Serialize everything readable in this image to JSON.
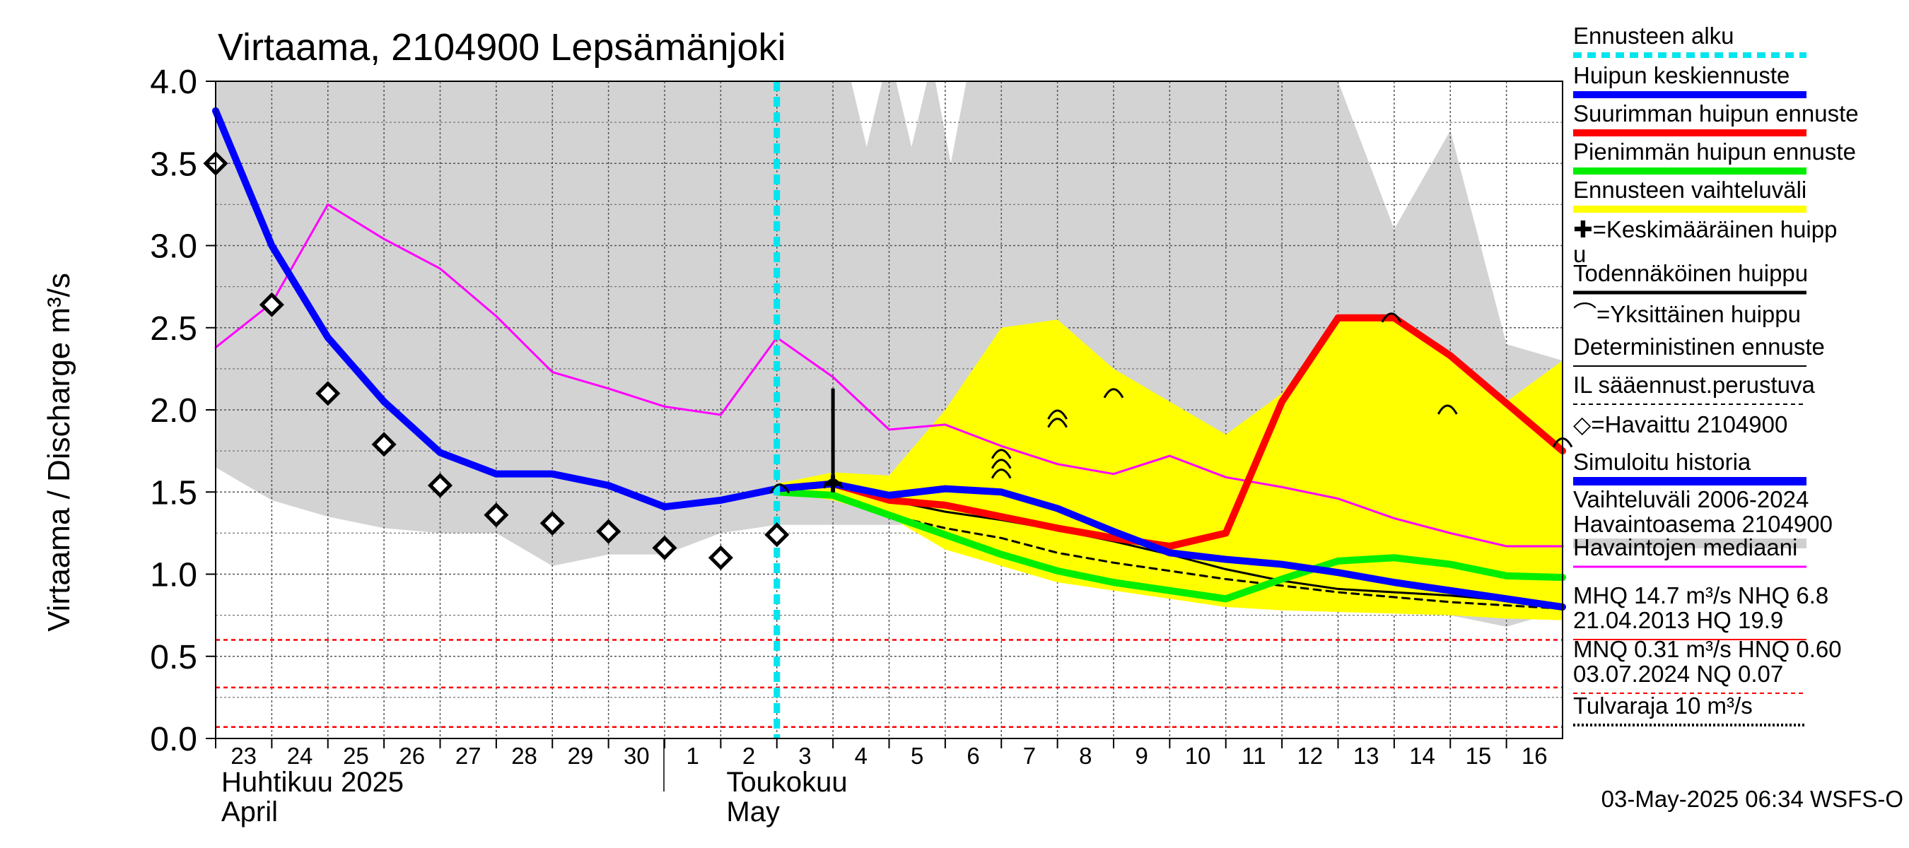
{
  "chart_data": {
    "type": "line",
    "title": "Virtaama, 2104900 Lepsämänjoki",
    "ylabel": "Virtaama / Discharge    m³/s",
    "ylim": [
      0,
      4
    ],
    "yticks": [
      "0.0",
      "0.5",
      "1.0",
      "1.5",
      "2.0",
      "2.5",
      "3.0",
      "3.5",
      "4.0"
    ],
    "xlim": [
      0,
      24
    ],
    "days": [
      "23",
      "24",
      "25",
      "26",
      "27",
      "28",
      "29",
      "30",
      "1",
      "2",
      "3",
      "4",
      "5",
      "6",
      "7",
      "8",
      "9",
      "10",
      "11",
      "12",
      "13",
      "14",
      "15",
      "16"
    ],
    "month_labels": [
      {
        "fi": "Huhtikuu  2025",
        "en": "April",
        "x": 0
      },
      {
        "fi": "Toukokuu",
        "en": "May",
        "x": 9
      }
    ],
    "forecast_start_x": 10,
    "range_hist": {
      "x": [
        0,
        1,
        2,
        3,
        4,
        5,
        5.5,
        6,
        7,
        8,
        9,
        10,
        11,
        12,
        12.9,
        13,
        14,
        15,
        16,
        17,
        18,
        19,
        20,
        21,
        22,
        23,
        24
      ],
      "upper": [
        4.0,
        4.0,
        4.0,
        4.0,
        4.0,
        4.0,
        4.0,
        4.0,
        4.0,
        4.0,
        4.0,
        4.0,
        4.0,
        4.0,
        4.0,
        4.0,
        4.0,
        4.0,
        4.0,
        4.0,
        4.0,
        4.0,
        4.0,
        3.1,
        3.7,
        2.4,
        2.3
      ],
      "lower": [
        1.65,
        1.45,
        1.35,
        1.28,
        1.25,
        1.25,
        1.15,
        1.05,
        1.12,
        1.12,
        1.25,
        1.3,
        1.3,
        1.3,
        1.3,
        1.3,
        1.25,
        1.15,
        1.05,
        1.0,
        0.95,
        0.9,
        0.85,
        0.82,
        0.75,
        0.68,
        0.78
      ]
    },
    "range_hist_gaps": [
      {
        "x": 11.6,
        "top": 4.0,
        "bottom": 3.6
      },
      {
        "x": 12.4,
        "top": 4.0,
        "bottom": 3.6
      },
      {
        "x": 13.1,
        "top": 4.0,
        "bottom": 3.5
      }
    ],
    "forecast_band": {
      "x": [
        10,
        11,
        12,
        13,
        14,
        15,
        16,
        17,
        18,
        19,
        20,
        21,
        22,
        23,
        24
      ],
      "upper": [
        1.55,
        1.62,
        1.6,
        2.0,
        2.5,
        2.55,
        2.25,
        2.05,
        1.85,
        2.1,
        2.55,
        2.55,
        2.35,
        2.05,
        2.3
      ],
      "lower": [
        1.5,
        1.45,
        1.35,
        1.15,
        1.05,
        0.95,
        0.9,
        0.85,
        0.8,
        0.78,
        0.77,
        0.76,
        0.75,
        0.73,
        0.72
      ]
    },
    "series": [
      {
        "name": "Havaintojen mediaani",
        "color": "#ff00ff",
        "width": 3,
        "x": [
          0,
          1,
          2,
          3,
          4,
          5,
          6,
          7,
          8,
          9,
          10,
          11,
          12,
          13,
          14,
          15,
          16,
          17,
          18,
          19,
          20,
          21,
          22,
          23,
          24
        ],
        "y": [
          2.38,
          2.65,
          3.25,
          3.04,
          2.86,
          2.57,
          2.23,
          2.13,
          2.02,
          1.97,
          2.44,
          2.2,
          1.88,
          1.91,
          1.78,
          1.67,
          1.61,
          1.72,
          1.59,
          1.53,
          1.46,
          1.34,
          1.25,
          1.17,
          1.17
        ]
      },
      {
        "name": "Simuloitu historia",
        "color": "#0000ff",
        "width": 10,
        "x": [
          0,
          1,
          2,
          3,
          4,
          5,
          6,
          7,
          8,
          9,
          10
        ],
        "y": [
          3.82,
          3.0,
          2.44,
          2.05,
          1.74,
          1.61,
          1.61,
          1.54,
          1.41,
          1.45,
          1.52
        ]
      },
      {
        "name": "Deterministinen ennuste",
        "color": "#000000",
        "width": 3,
        "dash": "",
        "x": [
          10,
          11,
          12,
          13,
          14,
          15,
          16,
          17,
          18,
          19,
          20,
          21,
          22,
          23,
          24
        ],
        "y": [
          1.52,
          1.55,
          1.45,
          1.38,
          1.33,
          1.27,
          1.2,
          1.12,
          1.03,
          0.96,
          0.91,
          0.89,
          0.87,
          0.84,
          0.8
        ]
      },
      {
        "name": "IL sääennust.perustuva",
        "color": "#000000",
        "width": 3,
        "dash": "10,8",
        "x": [
          10,
          11,
          12,
          13,
          14,
          15,
          16,
          17,
          18,
          19,
          20,
          21,
          22,
          23,
          24
        ],
        "y": [
          1.5,
          1.48,
          1.36,
          1.28,
          1.22,
          1.13,
          1.07,
          1.02,
          0.97,
          0.93,
          0.89,
          0.86,
          0.83,
          0.81,
          0.79
        ]
      },
      {
        "name": "Pienimmän huipun ennuste",
        "color": "#00ee00",
        "width": 10,
        "x": [
          10,
          11,
          12,
          13,
          14,
          15,
          16,
          17,
          18,
          19,
          20,
          21,
          22,
          23,
          24
        ],
        "y": [
          1.5,
          1.48,
          1.36,
          1.24,
          1.12,
          1.02,
          0.95,
          0.9,
          0.85,
          0.97,
          1.08,
          1.1,
          1.06,
          0.99,
          0.98
        ]
      },
      {
        "name": "Suurimman huipun ennuste",
        "color": "#ff0000",
        "width": 10,
        "x": [
          10,
          11,
          12,
          13,
          14,
          15,
          16,
          17,
          18,
          19,
          20,
          21,
          22,
          23,
          24
        ],
        "y": [
          1.52,
          1.55,
          1.45,
          1.42,
          1.35,
          1.28,
          1.22,
          1.17,
          1.25,
          2.05,
          2.56,
          2.56,
          2.33,
          2.04,
          1.75
        ]
      },
      {
        "name": "Huipun keskiennuste",
        "color": "#0000ff",
        "width": 10,
        "x": [
          10,
          11,
          12,
          13,
          14,
          15,
          16,
          17,
          18,
          19,
          20,
          21,
          22,
          23,
          24
        ],
        "y": [
          1.52,
          1.55,
          1.48,
          1.52,
          1.5,
          1.4,
          1.26,
          1.13,
          1.09,
          1.06,
          1.01,
          0.95,
          0.9,
          0.85,
          0.8
        ]
      }
    ],
    "observed": {
      "name": "Havaittu 2104900",
      "x": [
        0,
        1,
        2,
        3,
        4,
        5,
        6,
        7,
        8,
        9,
        10
      ],
      "y": [
        3.5,
        2.64,
        2.1,
        1.79,
        1.54,
        1.36,
        1.31,
        1.26,
        1.16,
        1.1,
        1.24
      ]
    },
    "single_peaks": {
      "x": [
        10.05,
        11.0,
        14.0,
        14.0,
        14.0,
        15.0,
        15.0,
        16.0,
        20.95,
        21.95,
        24.0
      ],
      "y": [
        1.52,
        1.55,
        1.73,
        1.67,
        1.61,
        1.97,
        1.92,
        2.1,
        2.56,
        2.0,
        1.8
      ]
    },
    "mean_peak": {
      "x": 11.0,
      "y": 1.55,
      "line_top": 2.13
    },
    "hlines": [
      {
        "y": 0.6,
        "color": "#ff0000",
        "dash": "6,5"
      },
      {
        "y": 0.31,
        "color": "#ff0000",
        "dash": "6,5"
      },
      {
        "y": 0.07,
        "color": "#ff0000",
        "dash": "6,5"
      }
    ],
    "legend": [
      {
        "label": "Ennusteen alku",
        "kind": "line",
        "color": "#00e5ee",
        "width": 8,
        "dash": "12,8"
      },
      {
        "label": "Huipun keskiennuste",
        "kind": "line",
        "color": "#0000ff",
        "width": 10
      },
      {
        "label": "Suurimman huipun ennuste",
        "kind": "line",
        "color": "#ff0000",
        "width": 10
      },
      {
        "label": "Pienimmän huipun ennuste",
        "kind": "line",
        "color": "#00ee00",
        "width": 10
      },
      {
        "label": "Ennusteen vaihteluväli",
        "kind": "line",
        "color": "#ffff00",
        "width": 10
      },
      {
        "label": "✚=Keskimääräinen huipp",
        "label2": "u",
        "kind": "none"
      },
      {
        "label": "Todennäköinen huippu",
        "kind": "line",
        "color": "#000000",
        "width": 5
      },
      {
        "label": "⌒=Yksittäinen huippu",
        "kind": "none"
      },
      {
        "label": "Deterministinen ennuste",
        "kind": "line",
        "color": "#000000",
        "width": 2
      },
      {
        "label": "IL sääennust.perustuva",
        "kind": "line",
        "color": "#000000",
        "width": 2,
        "dash": "6,5"
      },
      {
        "label": "◇=Havaittu 2104900",
        "kind": "none"
      },
      {
        "label": "Simuloitu historia",
        "kind": "line",
        "color": "#0000ff",
        "width": 12
      },
      {
        "label": "Vaihteluväli 2006-2024",
        "label2": " Havaintoasema 2104900",
        "kind": "line",
        "color": "#d0d0d0",
        "width": 14
      },
      {
        "label": "Havaintojen mediaani",
        "kind": "line",
        "color": "#ff00ff",
        "width": 3
      },
      {
        "label": "MHQ 14.7 m³/s NHQ  6.8",
        "label2": "21.04.2013 HQ 19.9",
        "kind": "line",
        "color": "#ff0000",
        "width": 2
      },
      {
        "label": "MNQ 0.31 m³/s HNQ 0.60",
        "label2": "03.07.2024 NQ 0.07",
        "kind": "line",
        "color": "#ff0000",
        "width": 2,
        "dash": "6,5"
      },
      {
        "label": "Tulvaraja 10 m³/s",
        "kind": "line",
        "color": "#000000",
        "width": 4,
        "dash": "3,3"
      }
    ],
    "footer": "03-May-2025 06:34 WSFS-O"
  }
}
